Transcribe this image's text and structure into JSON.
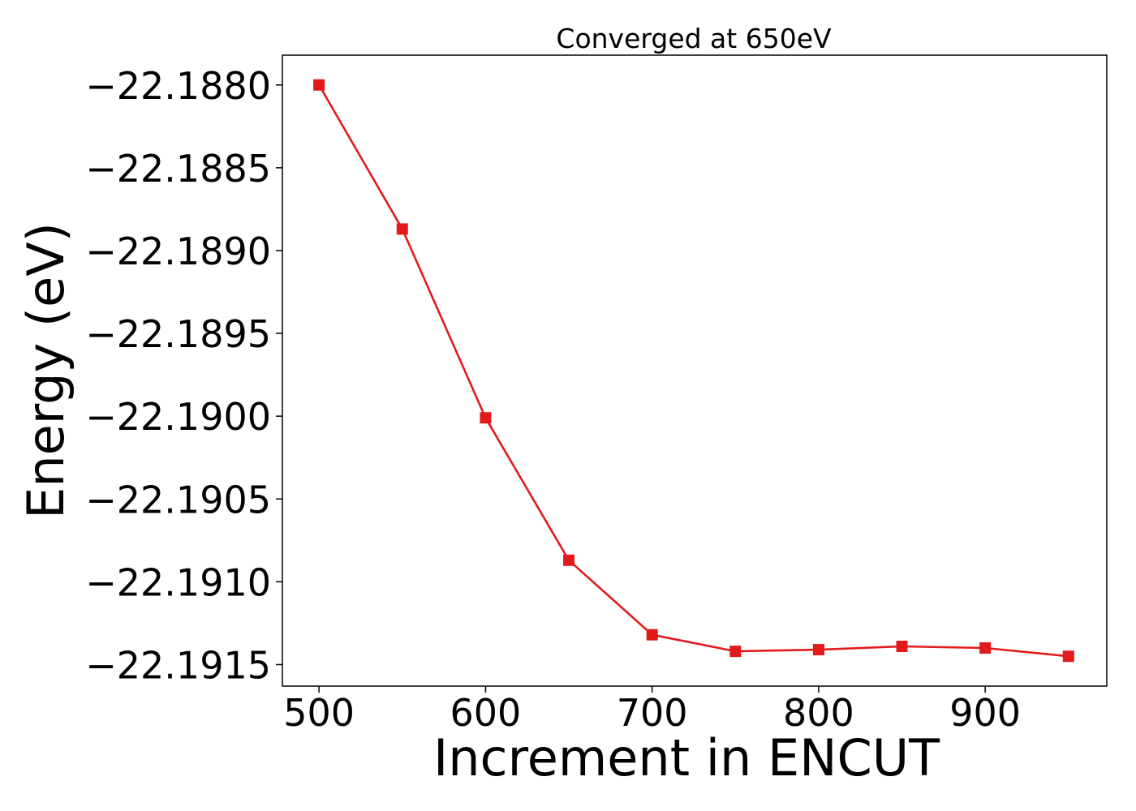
{
  "chart_data": {
    "type": "line",
    "title": "Converged at 650eV",
    "xlabel": "Increment in ENCUT",
    "ylabel": "Energy (eV)",
    "x": [
      500,
      550,
      600,
      650,
      700,
      750,
      800,
      850,
      900,
      950
    ],
    "series": [
      {
        "values": [
          -22.188,
          -22.18887,
          -22.19001,
          -22.19087,
          -22.19132,
          -22.19142,
          -22.19141,
          -22.19139,
          -22.1914,
          -22.19145
        ],
        "color": "#e31a1c",
        "marker": "square"
      }
    ],
    "xlim": [
      478,
      973
    ],
    "ylim": [
      -22.19163,
      -22.18782
    ],
    "xticks": [
      500,
      600,
      700,
      800,
      900
    ],
    "xtick_labels": [
      "500",
      "600",
      "700",
      "800",
      "900"
    ],
    "yticks": [
      -22.188,
      -22.1885,
      -22.189,
      -22.1895,
      -22.19,
      -22.1905,
      -22.191,
      -22.1915
    ],
    "ytick_labels": [
      "−22.1880",
      "−22.1885",
      "−22.1890",
      "−22.1895",
      "−22.1900",
      "−22.1905",
      "−22.1910",
      "−22.1915"
    ],
    "grid": false,
    "legend": "none"
  }
}
